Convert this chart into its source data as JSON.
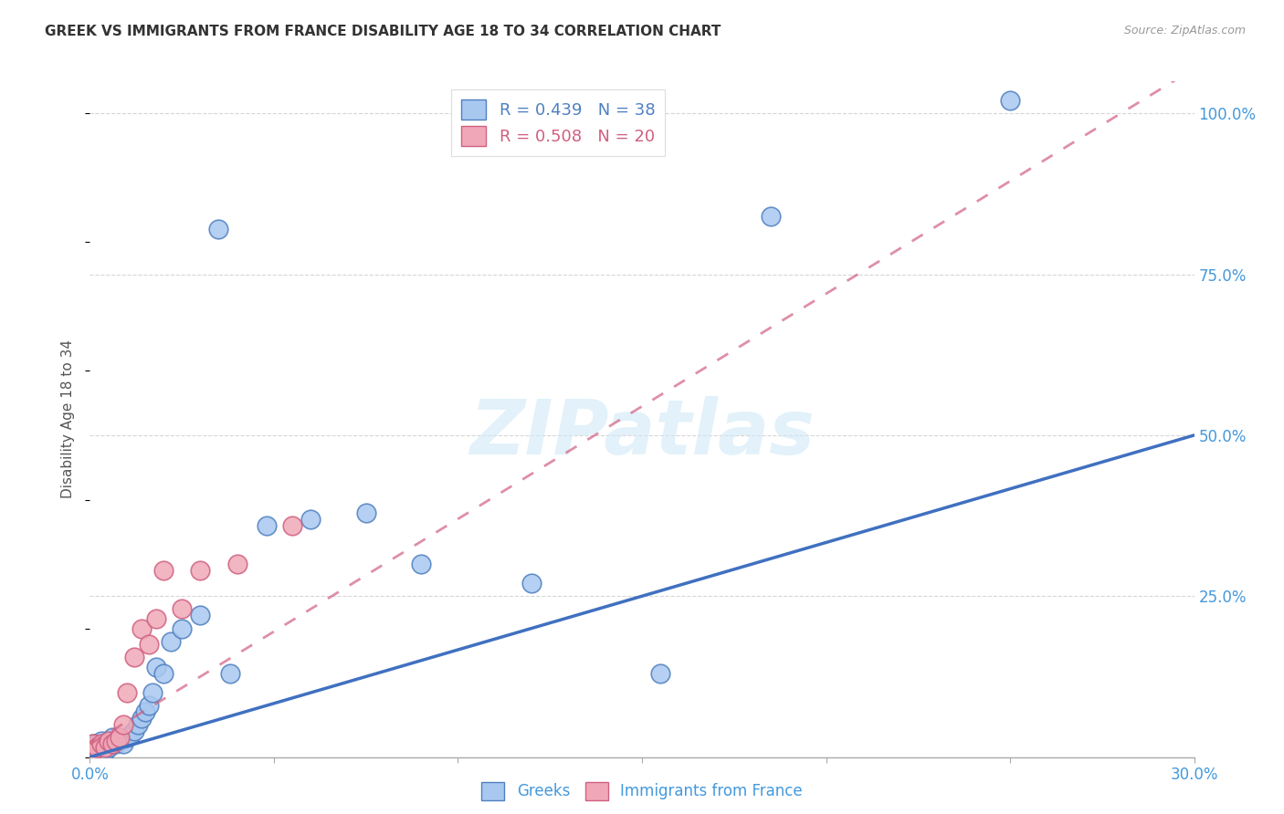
{
  "title": "GREEK VS IMMIGRANTS FROM FRANCE DISABILITY AGE 18 TO 34 CORRELATION CHART",
  "source": "Source: ZipAtlas.com",
  "ylabel": "Disability Age 18 to 34",
  "legend_R": [
    0.439,
    0.508
  ],
  "legend_N": [
    38,
    20
  ],
  "xlim": [
    0.0,
    0.3
  ],
  "ylim": [
    0.0,
    1.05
  ],
  "ytick_positions": [
    0.0,
    0.25,
    0.5,
    0.75,
    1.0
  ],
  "ytick_labels": [
    "",
    "25.0%",
    "50.0%",
    "75.0%",
    "100.0%"
  ],
  "blue_fill": "#A8C8F0",
  "blue_edge": "#5080C0",
  "pink_fill": "#F0A8B8",
  "pink_edge": "#D06080",
  "blue_line": "#4070C0",
  "pink_line": "#D06080",
  "background_color": "#FFFFFF",
  "grid_color": "#CCCCCC",
  "blue_line_slope": 1.667,
  "blue_line_intercept": 0.0,
  "pink_line_slope": 3.5,
  "pink_line_intercept": 0.02,
  "greeks_x": [
    0.001,
    0.001,
    0.002,
    0.002,
    0.003,
    0.003,
    0.004,
    0.004,
    0.005,
    0.005,
    0.006,
    0.006,
    0.007,
    0.008,
    0.009,
    0.01,
    0.011,
    0.012,
    0.013,
    0.014,
    0.015,
    0.016,
    0.017,
    0.018,
    0.02,
    0.022,
    0.025,
    0.03,
    0.035,
    0.038,
    0.048,
    0.06,
    0.075,
    0.09,
    0.12,
    0.155,
    0.185,
    0.25
  ],
  "greeks_y": [
    0.01,
    0.02,
    0.01,
    0.02,
    0.015,
    0.025,
    0.01,
    0.02,
    0.015,
    0.025,
    0.02,
    0.03,
    0.02,
    0.025,
    0.02,
    0.03,
    0.035,
    0.04,
    0.05,
    0.06,
    0.07,
    0.08,
    0.1,
    0.14,
    0.13,
    0.18,
    0.2,
    0.22,
    0.82,
    0.13,
    0.36,
    0.37,
    0.38,
    0.3,
    0.27,
    0.13,
    0.84,
    1.02
  ],
  "france_x": [
    0.001,
    0.001,
    0.002,
    0.003,
    0.004,
    0.005,
    0.006,
    0.007,
    0.008,
    0.009,
    0.01,
    0.012,
    0.014,
    0.016,
    0.018,
    0.02,
    0.025,
    0.03,
    0.04,
    0.055
  ],
  "france_y": [
    0.01,
    0.02,
    0.015,
    0.02,
    0.015,
    0.025,
    0.02,
    0.025,
    0.03,
    0.05,
    0.1,
    0.155,
    0.2,
    0.175,
    0.215,
    0.29,
    0.23,
    0.29,
    0.3,
    0.36
  ]
}
